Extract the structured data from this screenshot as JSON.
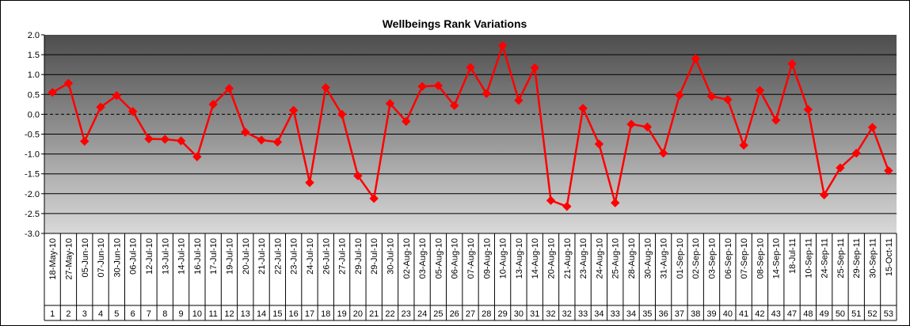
{
  "chart_data": {
    "type": "line",
    "title": "Wellbeings Rank Variations",
    "xlabel": "",
    "ylabel": "",
    "ylim": [
      -3.0,
      2.0
    ],
    "y_ticks": [
      "2.0",
      "1.5",
      "1.0",
      "0.5",
      "0.0",
      "-0.5",
      "-1.0",
      "-1.5",
      "-2.0",
      "-2.5",
      "-3.0"
    ],
    "grid": true,
    "legend": "none",
    "colors": {
      "line": "#ff0000",
      "marker": "#ff0000",
      "plot_bg_top": "#4d4d4d",
      "plot_bg_bottom": "#d9d9d9",
      "grid": "#000000"
    },
    "categories": [
      "18-May-10",
      "27-May-10",
      "05-Jun-10",
      "07-Jun-10",
      "30-Jun-10",
      "06-Jul-10",
      "12-Jul-10",
      "13-Jul-10",
      "14-Jul-10",
      "16-Jul-10",
      "17-Jul-10",
      "19-Jul-10",
      "20-Jul-10",
      "21-Jul-10",
      "22-Jul-10",
      "23-Jul-10",
      "24-Jul-10",
      "26-Jul-10",
      "27-Jul-10",
      "29-Jul-10",
      "29-Jul-10",
      "30-Jul-10",
      "02-Aug-10",
      "03-Aug-10",
      "05-Aug-10",
      "06-Aug-10",
      "07-Aug-10",
      "09-Aug-10",
      "10-Aug-10",
      "13-Aug-10",
      "14-Aug-10",
      "20-Aug-10",
      "21-Aug-10",
      "23-Aug-10",
      "24-Aug-10",
      "25-Aug-10",
      "28-Aug-10",
      "30-Aug-10",
      "31-Aug-10",
      "01-Sep-10",
      "02-Sep-10",
      "03-Sep-10",
      "06-Sep-10",
      "07-Sep-10",
      "08-Sep-10",
      "14-Sep-10",
      "18-Jul-11",
      "10-Sep-11",
      "24-Sep-11",
      "25-Sep-11",
      "29-Sep-11",
      "30-Sep-11",
      "15-Oct-11"
    ],
    "indices": [
      "1",
      "2",
      "3",
      "4",
      "5",
      "6",
      "7",
      "8",
      "9",
      "10",
      "11",
      "12",
      "13",
      "14",
      "15",
      "16",
      "17",
      "18",
      "19",
      "20",
      "21",
      "22",
      "23",
      "24",
      "25",
      "26",
      "27",
      "28",
      "29",
      "30",
      "31",
      "32",
      "32",
      "33",
      "34",
      "33",
      "34",
      "35",
      "36",
      "37",
      "38",
      "39",
      "40",
      "41",
      "42",
      "43",
      "47",
      "48",
      "49",
      "50",
      "51",
      "52",
      "53"
    ],
    "series": [
      {
        "values": [
          0.55,
          0.78,
          -0.68,
          0.18,
          0.47,
          0.07,
          -0.62,
          -0.63,
          -0.67,
          -1.07,
          0.25,
          0.65,
          -0.45,
          -0.65,
          -0.7,
          0.1,
          -1.72,
          0.67,
          0.0,
          -1.55,
          -2.12,
          0.27,
          -0.18,
          0.7,
          0.72,
          0.22,
          1.18,
          0.52,
          1.73,
          0.35,
          1.17,
          -2.17,
          -2.32,
          0.15,
          -0.75,
          -2.23,
          -0.25,
          -0.32,
          -0.98,
          0.48,
          1.4,
          0.45,
          0.37,
          -0.78,
          0.6,
          -0.15,
          1.27,
          0.12,
          -2.03,
          -1.35,
          -0.98,
          -0.33,
          -1.42
        ]
      }
    ]
  }
}
